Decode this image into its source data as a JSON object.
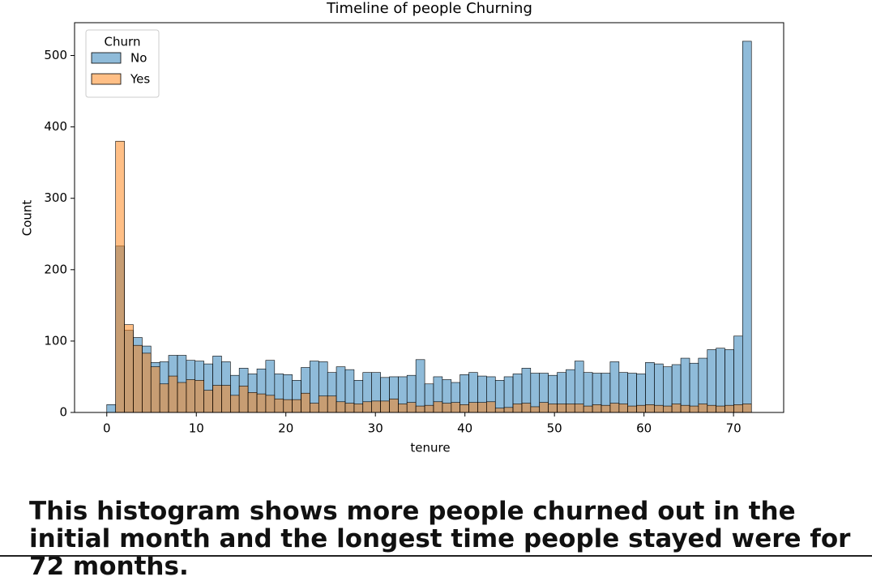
{
  "chart_data": {
    "type": "histogram",
    "title": "Timeline of people Churning",
    "x_label": "tenure",
    "y_label": "Count",
    "legend_title": "Churn",
    "legend": "upper left",
    "bins": [
      0,
      0.99,
      1.97,
      2.96,
      3.95,
      4.93,
      5.92,
      6.9,
      7.89,
      8.88,
      9.86,
      10.85,
      11.84,
      12.82,
      13.81,
      14.79,
      15.78,
      16.77,
      17.75,
      18.74,
      19.73,
      20.71,
      21.7,
      22.68,
      23.67,
      24.66,
      25.64,
      26.63,
      27.62,
      28.6,
      29.59,
      30.58,
      31.56,
      32.55,
      33.53,
      34.52,
      35.51,
      36.49,
      37.48,
      38.47,
      39.45,
      40.44,
      41.42,
      42.41,
      43.4,
      44.38,
      45.37,
      46.36,
      47.34,
      48.33,
      49.32,
      50.3,
      51.29,
      52.27,
      53.26,
      54.25,
      55.23,
      56.22,
      57.21,
      58.19,
      59.18,
      60.16,
      61.15,
      62.14,
      63.12,
      64.11,
      65.1,
      66.08,
      67.07,
      68.05,
      69.04,
      70.03,
      71.01,
      72
    ],
    "series": [
      {
        "name": "No",
        "color": "#1f77b4",
        "values": [
          11,
          233,
          115,
          105,
          93,
          70,
          71,
          80,
          80,
          73,
          72,
          68,
          79,
          71,
          52,
          62,
          54,
          61,
          73,
          54,
          53,
          45,
          63,
          72,
          71,
          56,
          64,
          60,
          45,
          56,
          56,
          49,
          50,
          50,
          52,
          74,
          40,
          50,
          46,
          42,
          53,
          56,
          51,
          50,
          45,
          50,
          54,
          62,
          55,
          55,
          52,
          56,
          60,
          72,
          56,
          55,
          55,
          71,
          56,
          55,
          54,
          70,
          68,
          64,
          67,
          76,
          69,
          76,
          88,
          90,
          88,
          107,
          520
        ]
      },
      {
        "name": "Yes",
        "color": "#ff7f0e",
        "values": [
          0,
          380,
          123,
          94,
          83,
          64,
          40,
          51,
          42,
          46,
          45,
          31,
          38,
          38,
          24,
          37,
          28,
          26,
          24,
          19,
          18,
          18,
          27,
          13,
          23,
          23,
          15,
          13,
          12,
          15,
          16,
          16,
          19,
          12,
          14,
          9,
          10,
          15,
          13,
          14,
          11,
          14,
          14,
          15,
          6,
          7,
          12,
          13,
          8,
          14,
          12,
          12,
          12,
          12,
          9,
          11,
          10,
          13,
          12,
          9,
          10,
          11,
          10,
          9,
          12,
          10,
          9,
          12,
          10,
          9,
          10,
          11,
          12
        ]
      }
    ],
    "xlim": [
      -3.6,
      75.6
    ],
    "xticks": [
      0,
      10,
      20,
      30,
      40,
      50,
      60,
      70
    ],
    "ylim": [
      0,
      546
    ],
    "yticks": [
      0,
      100,
      200,
      300,
      400,
      500
    ],
    "grid": false
  },
  "caption": "This histogram shows more people churned out in the initial month and the longest time people stayed were for 72 months."
}
